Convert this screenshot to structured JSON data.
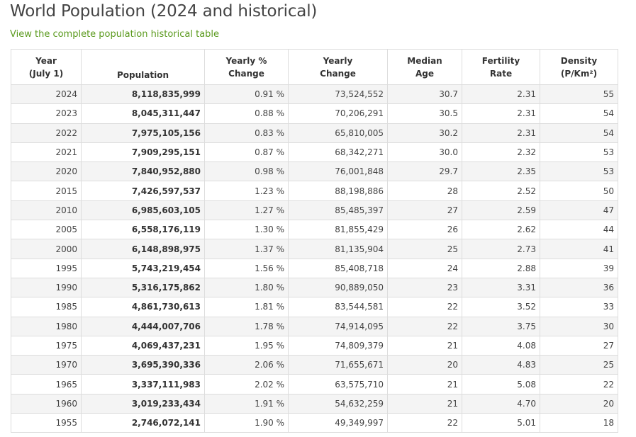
{
  "page": {
    "title": "World Population (2024 and historical)",
    "link_text": "View the complete population historical table"
  },
  "table": {
    "headers": {
      "year": "Year\n(July 1)",
      "population": "Population",
      "yearly_pct": "Yearly %\nChange",
      "yearly_change": "Yearly\nChange",
      "median_age": "Median\nAge",
      "fertility": "Fertility\nRate",
      "density": "Density\n(P/Km²)"
    },
    "rows": [
      {
        "year": "2024",
        "population": "8,118,835,999",
        "yearly_pct": "0.91 %",
        "yearly_change": "73,524,552",
        "median_age": "30.7",
        "fertility": "2.31",
        "density": "55"
      },
      {
        "year": "2023",
        "population": "8,045,311,447",
        "yearly_pct": "0.88 %",
        "yearly_change": "70,206,291",
        "median_age": "30.5",
        "fertility": "2.31",
        "density": "54"
      },
      {
        "year": "2022",
        "population": "7,975,105,156",
        "yearly_pct": "0.83 %",
        "yearly_change": "65,810,005",
        "median_age": "30.2",
        "fertility": "2.31",
        "density": "54"
      },
      {
        "year": "2021",
        "population": "7,909,295,151",
        "yearly_pct": "0.87 %",
        "yearly_change": "68,342,271",
        "median_age": "30.0",
        "fertility": "2.32",
        "density": "53"
      },
      {
        "year": "2020",
        "population": "7,840,952,880",
        "yearly_pct": "0.98 %",
        "yearly_change": "76,001,848",
        "median_age": "29.7",
        "fertility": "2.35",
        "density": "53"
      },
      {
        "year": "2015",
        "population": "7,426,597,537",
        "yearly_pct": "1.23 %",
        "yearly_change": "88,198,886",
        "median_age": "28",
        "fertility": "2.52",
        "density": "50"
      },
      {
        "year": "2010",
        "population": "6,985,603,105",
        "yearly_pct": "1.27 %",
        "yearly_change": "85,485,397",
        "median_age": "27",
        "fertility": "2.59",
        "density": "47"
      },
      {
        "year": "2005",
        "population": "6,558,176,119",
        "yearly_pct": "1.30 %",
        "yearly_change": "81,855,429",
        "median_age": "26",
        "fertility": "2.62",
        "density": "44"
      },
      {
        "year": "2000",
        "population": "6,148,898,975",
        "yearly_pct": "1.37 %",
        "yearly_change": "81,135,904",
        "median_age": "25",
        "fertility": "2.73",
        "density": "41"
      },
      {
        "year": "1995",
        "population": "5,743,219,454",
        "yearly_pct": "1.56 %",
        "yearly_change": "85,408,718",
        "median_age": "24",
        "fertility": "2.88",
        "density": "39"
      },
      {
        "year": "1990",
        "population": "5,316,175,862",
        "yearly_pct": "1.80 %",
        "yearly_change": "90,889,050",
        "median_age": "23",
        "fertility": "3.31",
        "density": "36"
      },
      {
        "year": "1985",
        "population": "4,861,730,613",
        "yearly_pct": "1.81 %",
        "yearly_change": "83,544,581",
        "median_age": "22",
        "fertility": "3.52",
        "density": "33"
      },
      {
        "year": "1980",
        "population": "4,444,007,706",
        "yearly_pct": "1.78 %",
        "yearly_change": "74,914,095",
        "median_age": "22",
        "fertility": "3.75",
        "density": "30"
      },
      {
        "year": "1975",
        "population": "4,069,437,231",
        "yearly_pct": "1.95 %",
        "yearly_change": "74,809,379",
        "median_age": "21",
        "fertility": "4.08",
        "density": "27"
      },
      {
        "year": "1970",
        "population": "3,695,390,336",
        "yearly_pct": "2.06 %",
        "yearly_change": "71,655,671",
        "median_age": "20",
        "fertility": "4.83",
        "density": "25"
      },
      {
        "year": "1965",
        "population": "3,337,111,983",
        "yearly_pct": "2.02 %",
        "yearly_change": "63,575,710",
        "median_age": "21",
        "fertility": "5.08",
        "density": "22"
      },
      {
        "year": "1960",
        "population": "3,019,233,434",
        "yearly_pct": "1.91 %",
        "yearly_change": "54,632,259",
        "median_age": "21",
        "fertility": "4.70",
        "density": "20"
      },
      {
        "year": "1955",
        "population": "2,746,072,141",
        "yearly_pct": "1.90 %",
        "yearly_change": "49,349,997",
        "median_age": "22",
        "fertility": "5.01",
        "density": "18"
      }
    ]
  },
  "colors": {
    "link": "#5b9a1e",
    "stripe": "#f4f4f4",
    "border": "#dddddd"
  }
}
